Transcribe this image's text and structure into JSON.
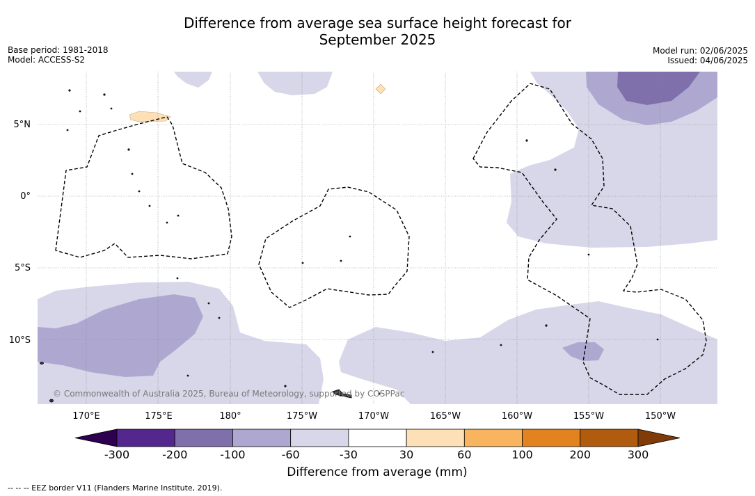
{
  "title_line1": "Difference from average sea surface height forecast for",
  "title_line2": "September 2025",
  "base_period": "Base period: 1981-2018",
  "model": "Model: ACCESS-S2",
  "model_run": "Model run: 02/06/2025",
  "issued": "Issued: 04/06/2025",
  "lon_labels": [
    "170°E",
    "175°E",
    "180°",
    "175°W",
    "170°W",
    "165°W",
    "160°W",
    "155°W",
    "150°W"
  ],
  "lat_labels": [
    "5°N",
    "0°",
    "5°S",
    "10°S"
  ],
  "copyright": "© Commonwealth of Australia 2025, Bureau of Meteorology, supported by COSPPac",
  "colorbar": {
    "ticks": [
      "-300",
      "-200",
      "-100",
      "-60",
      "-30",
      "30",
      "60",
      "100",
      "200",
      "300"
    ],
    "colors": [
      "#54278f",
      "#7f6fab",
      "#aea8d1",
      "#d7d7e9",
      "#ffffff",
      "#fde0b6",
      "#f8b45e",
      "#e2831f",
      "#b15b0e"
    ],
    "under_color": "#2d0050",
    "over_color": "#7f3b08",
    "label": "Difference from average (mm)"
  },
  "footnote": "-- -- -- EEZ border V11 (Flanders Marine Institute, 2019)."
}
